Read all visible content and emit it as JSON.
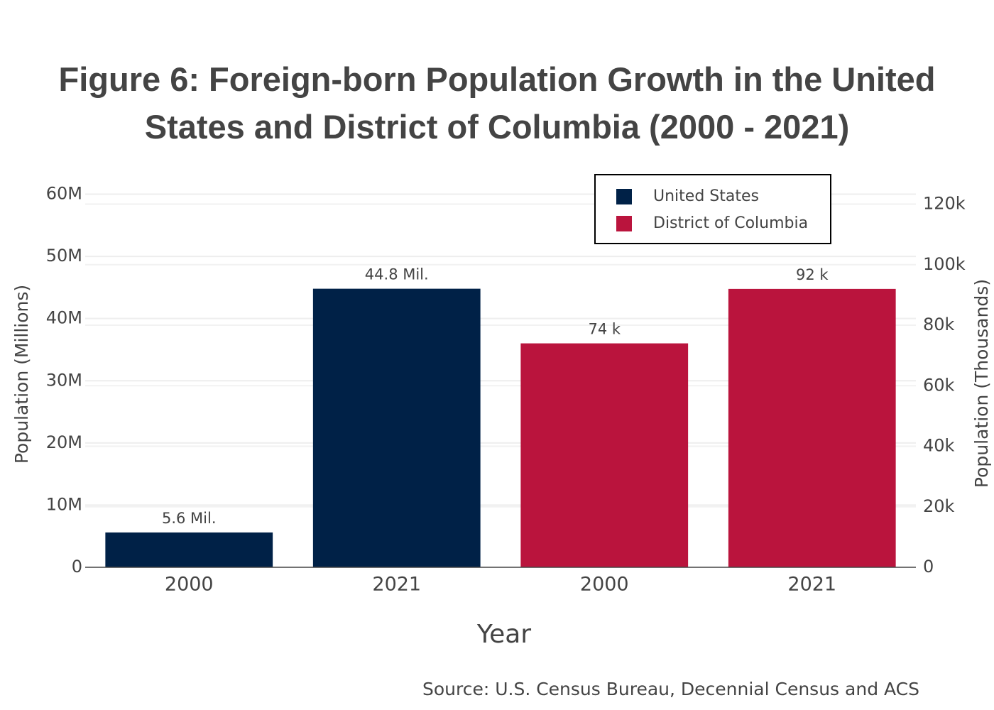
{
  "chart_data": {
    "type": "bar",
    "title": "Figure 6: Foreign-born Population Growth in the United States and District of Columbia (2000 - 2021)",
    "x_label": "Year",
    "y_label": "Population (Millions)",
    "y2_label": "Population (Thousands)",
    "annotation": "Source: U.S. Census Bureau, Decennial Census and ACS",
    "categories": [
      "2000",
      "2021",
      "2000",
      "2021"
    ],
    "series": [
      {
        "name": "United States",
        "color": "#002147",
        "axis": "y",
        "values": [
          5600000,
          44800000,
          null,
          null
        ],
        "value_labels": [
          "5.6 Mil.",
          "44.8 Mil.",
          null,
          null
        ]
      },
      {
        "name": "District of Columbia",
        "color": "#ba143d",
        "axis": "y2",
        "values": [
          null,
          null,
          74000,
          92000
        ],
        "value_labels": [
          null,
          null,
          "74 k",
          "92 k"
        ]
      }
    ],
    "ylim": [
      0,
      62000000
    ],
    "yticks": [
      0,
      {
        "value": 10000000,
        "label": "10M"
      },
      {
        "value": 20000000,
        "label": "20M"
      },
      {
        "value": 30000000,
        "label": "30M"
      },
      {
        "value": 40000000,
        "label": "40M"
      },
      {
        "value": 50000000,
        "label": "50M"
      },
      {
        "value": 60000000,
        "label": "60M"
      }
    ],
    "y2lim": [
      0,
      127400
    ],
    "y2ticks": [
      0,
      {
        "value": 20000,
        "label": "20k"
      },
      {
        "value": 40000,
        "label": "40k"
      },
      {
        "value": 60000,
        "label": "60k"
      },
      {
        "value": 80000,
        "label": "80k"
      },
      {
        "value": 100000,
        "label": "100k"
      },
      {
        "value": 120000,
        "label": "120k"
      }
    ],
    "grid": true,
    "legend": "top-right"
  }
}
